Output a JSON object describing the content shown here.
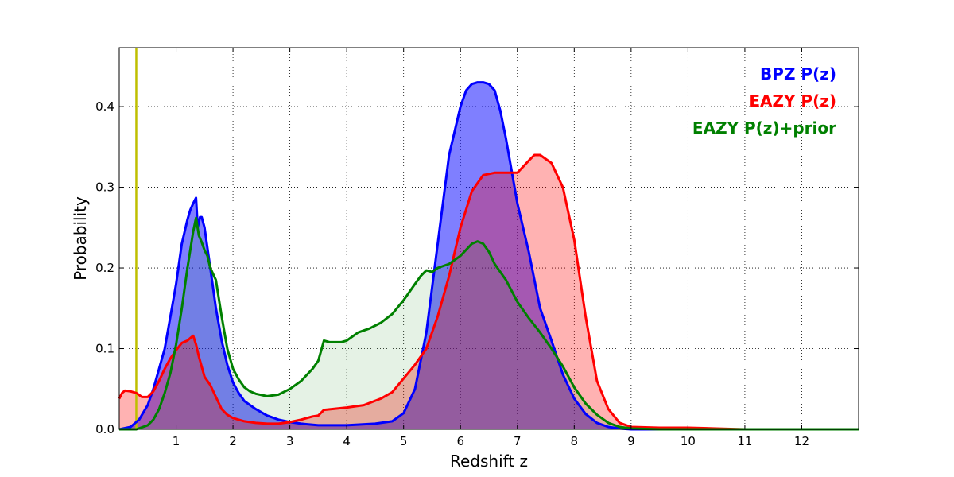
{
  "chart_data": {
    "type": "area",
    "xlabel": "Redshift z",
    "ylabel": "Probability",
    "xlim": [
      0,
      13
    ],
    "ylim": [
      0,
      0.473
    ],
    "x_ticks": [
      1,
      2,
      3,
      4,
      5,
      6,
      7,
      8,
      9,
      10,
      11,
      12
    ],
    "x_tick_labels": [
      "1",
      "2",
      "3",
      "4",
      "5",
      "6",
      "7",
      "8",
      "9",
      "10",
      "11",
      "12"
    ],
    "y_ticks": [
      0,
      0.1,
      0.2,
      0.3,
      0.4
    ],
    "y_tick_labels": [
      "0.0",
      "0.1",
      "0.2",
      "0.3",
      "0.4"
    ],
    "grid": true,
    "legend_position": "top-right",
    "reference_line": {
      "x": 0.3,
      "color": "#bfbf00"
    },
    "series": [
      {
        "name": "BPZ P(z)",
        "color": "#0000ff",
        "fill_color": "#0000ff",
        "fill_opacity": 0.5,
        "x": [
          0,
          0.2,
          0.35,
          0.5,
          0.6,
          0.7,
          0.8,
          0.9,
          1.0,
          1.1,
          1.2,
          1.25,
          1.3,
          1.35,
          1.38,
          1.42,
          1.45,
          1.5,
          1.6,
          1.7,
          1.8,
          1.9,
          2.0,
          2.1,
          2.2,
          2.4,
          2.6,
          2.8,
          3.0,
          3.2,
          3.5,
          4.0,
          4.5,
          4.8,
          5.0,
          5.2,
          5.4,
          5.6,
          5.8,
          6.0,
          6.1,
          6.2,
          6.3,
          6.4,
          6.5,
          6.6,
          6.7,
          6.8,
          7.0,
          7.2,
          7.4,
          7.6,
          7.8,
          8.0,
          8.2,
          8.4,
          8.6,
          8.8,
          9.0,
          9.5,
          10,
          11,
          12,
          13
        ],
        "y": [
          0.0,
          0.003,
          0.012,
          0.03,
          0.05,
          0.075,
          0.1,
          0.14,
          0.18,
          0.23,
          0.26,
          0.272,
          0.28,
          0.287,
          0.25,
          0.263,
          0.263,
          0.25,
          0.2,
          0.15,
          0.11,
          0.08,
          0.058,
          0.045,
          0.035,
          0.025,
          0.017,
          0.012,
          0.009,
          0.007,
          0.005,
          0.005,
          0.007,
          0.01,
          0.02,
          0.05,
          0.12,
          0.23,
          0.34,
          0.4,
          0.42,
          0.428,
          0.43,
          0.43,
          0.428,
          0.42,
          0.395,
          0.36,
          0.28,
          0.22,
          0.15,
          0.11,
          0.068,
          0.038,
          0.019,
          0.008,
          0.003,
          0.001,
          0.0,
          0.0,
          0.0,
          0.0,
          0.0,
          0.0
        ]
      },
      {
        "name": "EAZY P(z)",
        "color": "#ff0000",
        "fill_color": "#ff0000",
        "fill_opacity": 0.3,
        "x": [
          0,
          0.05,
          0.1,
          0.2,
          0.3,
          0.4,
          0.5,
          0.6,
          0.7,
          0.8,
          0.9,
          1.0,
          1.1,
          1.2,
          1.25,
          1.3,
          1.35,
          1.4,
          1.5,
          1.6,
          1.7,
          1.8,
          1.9,
          2.0,
          2.2,
          2.4,
          2.6,
          2.8,
          3.0,
          3.2,
          3.4,
          3.5,
          3.6,
          4.0,
          4.3,
          4.6,
          4.8,
          5.0,
          5.2,
          5.4,
          5.6,
          5.8,
          6.0,
          6.2,
          6.4,
          6.6,
          6.8,
          7.0,
          7.2,
          7.3,
          7.4,
          7.6,
          7.8,
          8.0,
          8.2,
          8.4,
          8.6,
          8.8,
          9.0,
          9.5,
          10,
          10.5,
          11,
          12,
          13
        ],
        "y": [
          0.038,
          0.045,
          0.048,
          0.047,
          0.045,
          0.04,
          0.04,
          0.047,
          0.06,
          0.075,
          0.088,
          0.098,
          0.107,
          0.11,
          0.113,
          0.116,
          0.105,
          0.09,
          0.065,
          0.055,
          0.04,
          0.025,
          0.018,
          0.014,
          0.01,
          0.008,
          0.007,
          0.007,
          0.009,
          0.012,
          0.016,
          0.017,
          0.024,
          0.027,
          0.03,
          0.038,
          0.046,
          0.063,
          0.08,
          0.1,
          0.14,
          0.19,
          0.25,
          0.295,
          0.315,
          0.318,
          0.318,
          0.318,
          0.333,
          0.34,
          0.34,
          0.33,
          0.3,
          0.235,
          0.14,
          0.06,
          0.025,
          0.008,
          0.003,
          0.002,
          0.002,
          0.001,
          0.0,
          0.0,
          0.0
        ]
      },
      {
        "name": "EAZY P(z)+prior",
        "color": "#008000",
        "fill_color": "#008000",
        "fill_opacity": 0.1,
        "x": [
          0,
          0.3,
          0.5,
          0.6,
          0.7,
          0.8,
          0.9,
          1.0,
          1.1,
          1.2,
          1.3,
          1.35,
          1.4,
          1.45,
          1.5,
          1.55,
          1.6,
          1.7,
          1.8,
          1.9,
          2.0,
          2.1,
          2.2,
          2.3,
          2.4,
          2.6,
          2.8,
          3.0,
          3.2,
          3.4,
          3.5,
          3.6,
          3.7,
          3.9,
          4.0,
          4.2,
          4.4,
          4.6,
          4.8,
          5.0,
          5.2,
          5.3,
          5.4,
          5.5,
          5.6,
          5.8,
          6.0,
          6.2,
          6.3,
          6.4,
          6.5,
          6.6,
          6.8,
          7.0,
          7.2,
          7.4,
          7.6,
          7.8,
          8.0,
          8.2,
          8.4,
          8.6,
          8.8,
          9.0,
          9.5,
          10,
          11,
          12,
          13
        ],
        "y": [
          0.0,
          0.0,
          0.005,
          0.012,
          0.025,
          0.045,
          0.07,
          0.105,
          0.15,
          0.2,
          0.245,
          0.262,
          0.24,
          0.232,
          0.222,
          0.215,
          0.2,
          0.185,
          0.14,
          0.1,
          0.075,
          0.062,
          0.052,
          0.047,
          0.044,
          0.041,
          0.043,
          0.05,
          0.06,
          0.075,
          0.085,
          0.11,
          0.108,
          0.108,
          0.11,
          0.12,
          0.125,
          0.132,
          0.143,
          0.16,
          0.18,
          0.19,
          0.197,
          0.195,
          0.2,
          0.205,
          0.215,
          0.23,
          0.233,
          0.23,
          0.22,
          0.205,
          0.185,
          0.158,
          0.138,
          0.12,
          0.1,
          0.078,
          0.052,
          0.032,
          0.018,
          0.008,
          0.003,
          0.001,
          0.0,
          0.0,
          0.0,
          0.0,
          0.0
        ]
      }
    ]
  }
}
